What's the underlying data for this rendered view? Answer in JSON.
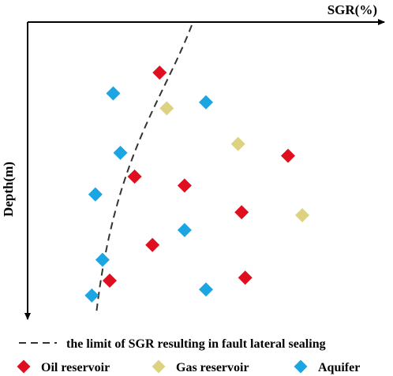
{
  "chart_data": {
    "type": "scatter",
    "xlabel": "SGR(%)",
    "ylabel": "Depth(m)",
    "grid": false,
    "legend_position": "bottom",
    "limit_line": {
      "label": "the limit of SGR resulting in fault lateral sealing",
      "color": "#333333",
      "style": "dashed"
    },
    "series": [
      {
        "name": "Oil reservoir",
        "color": "#e00f1f",
        "marker": "diamond",
        "points": [
          {
            "x": 0.37,
            "y": 0.17
          },
          {
            "x": 0.3,
            "y": 0.52
          },
          {
            "x": 0.44,
            "y": 0.55
          },
          {
            "x": 0.73,
            "y": 0.45
          },
          {
            "x": 0.6,
            "y": 0.64
          },
          {
            "x": 0.35,
            "y": 0.75
          },
          {
            "x": 0.61,
            "y": 0.86
          },
          {
            "x": 0.23,
            "y": 0.87
          }
        ]
      },
      {
        "name": "Gas reservoir",
        "color": "#ddd280",
        "marker": "diamond",
        "points": [
          {
            "x": 0.39,
            "y": 0.29
          },
          {
            "x": 0.59,
            "y": 0.41
          },
          {
            "x": 0.77,
            "y": 0.65
          }
        ]
      },
      {
        "name": "Aquifer",
        "color": "#1ca5e3",
        "marker": "diamond",
        "points": [
          {
            "x": 0.24,
            "y": 0.24
          },
          {
            "x": 0.5,
            "y": 0.27
          },
          {
            "x": 0.26,
            "y": 0.44
          },
          {
            "x": 0.19,
            "y": 0.58
          },
          {
            "x": 0.44,
            "y": 0.7
          },
          {
            "x": 0.21,
            "y": 0.8
          },
          {
            "x": 0.5,
            "y": 0.9
          },
          {
            "x": 0.18,
            "y": 0.92
          }
        ]
      }
    ]
  }
}
